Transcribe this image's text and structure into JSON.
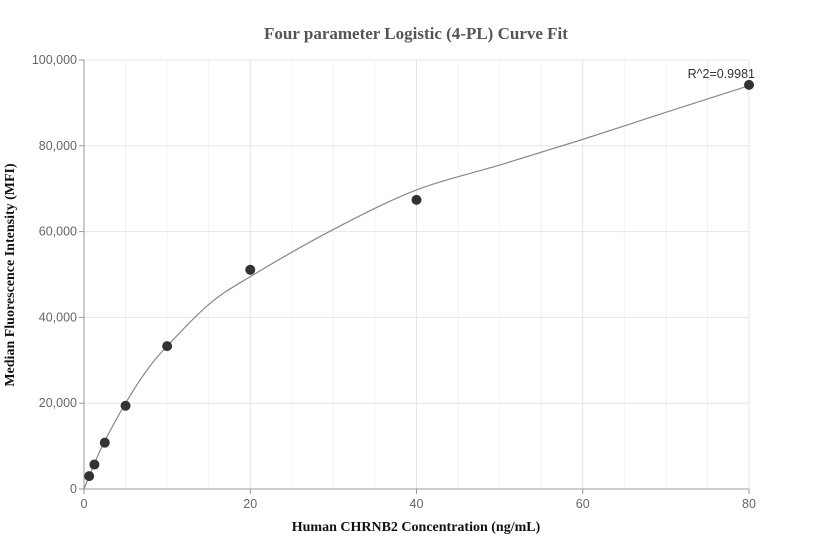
{
  "chart_data": {
    "type": "scatter",
    "title": "Four parameter Logistic (4-PL) Curve Fit",
    "xlabel": "Human CHRNB2 Concentration (ng/mL)",
    "ylabel": "Median Fluorescence Intensity (MFI)",
    "xlim": [
      0,
      80
    ],
    "ylim": [
      0,
      100000
    ],
    "x_ticks": [
      0,
      20,
      40,
      60,
      80
    ],
    "y_ticks": [
      0,
      20000,
      40000,
      60000,
      80000,
      100000
    ],
    "x_tick_labels": [
      "0",
      "20",
      "40",
      "60",
      "80"
    ],
    "y_tick_labels": [
      "0",
      "20,000",
      "40,000",
      "60,000",
      "80,000",
      "100,000"
    ],
    "grid": true,
    "annotation": "R^2=0.9981",
    "points": [
      {
        "x": 0.625,
        "y": 3000
      },
      {
        "x": 1.25,
        "y": 5700
      },
      {
        "x": 2.5,
        "y": 10800
      },
      {
        "x": 5,
        "y": 19400
      },
      {
        "x": 10,
        "y": 33300
      },
      {
        "x": 20,
        "y": 51100
      },
      {
        "x": 40,
        "y": 67400
      },
      {
        "x": 80,
        "y": 94200
      }
    ],
    "fit_curve": [
      [
        0,
        0
      ],
      [
        0.625,
        3000
      ],
      [
        1.25,
        5900
      ],
      [
        2.5,
        11200
      ],
      [
        5,
        20000
      ],
      [
        7.5,
        27500
      ],
      [
        10,
        33300
      ],
      [
        15,
        43000
      ],
      [
        20,
        49500
      ],
      [
        30,
        60500
      ],
      [
        40,
        69700
      ],
      [
        50,
        75500
      ],
      [
        60,
        81500
      ],
      [
        70,
        87800
      ],
      [
        80,
        94000
      ]
    ],
    "colors": {
      "point": "#333333",
      "curve": "#888888",
      "grid": "#e6e6e6",
      "axis": "#999999"
    }
  }
}
